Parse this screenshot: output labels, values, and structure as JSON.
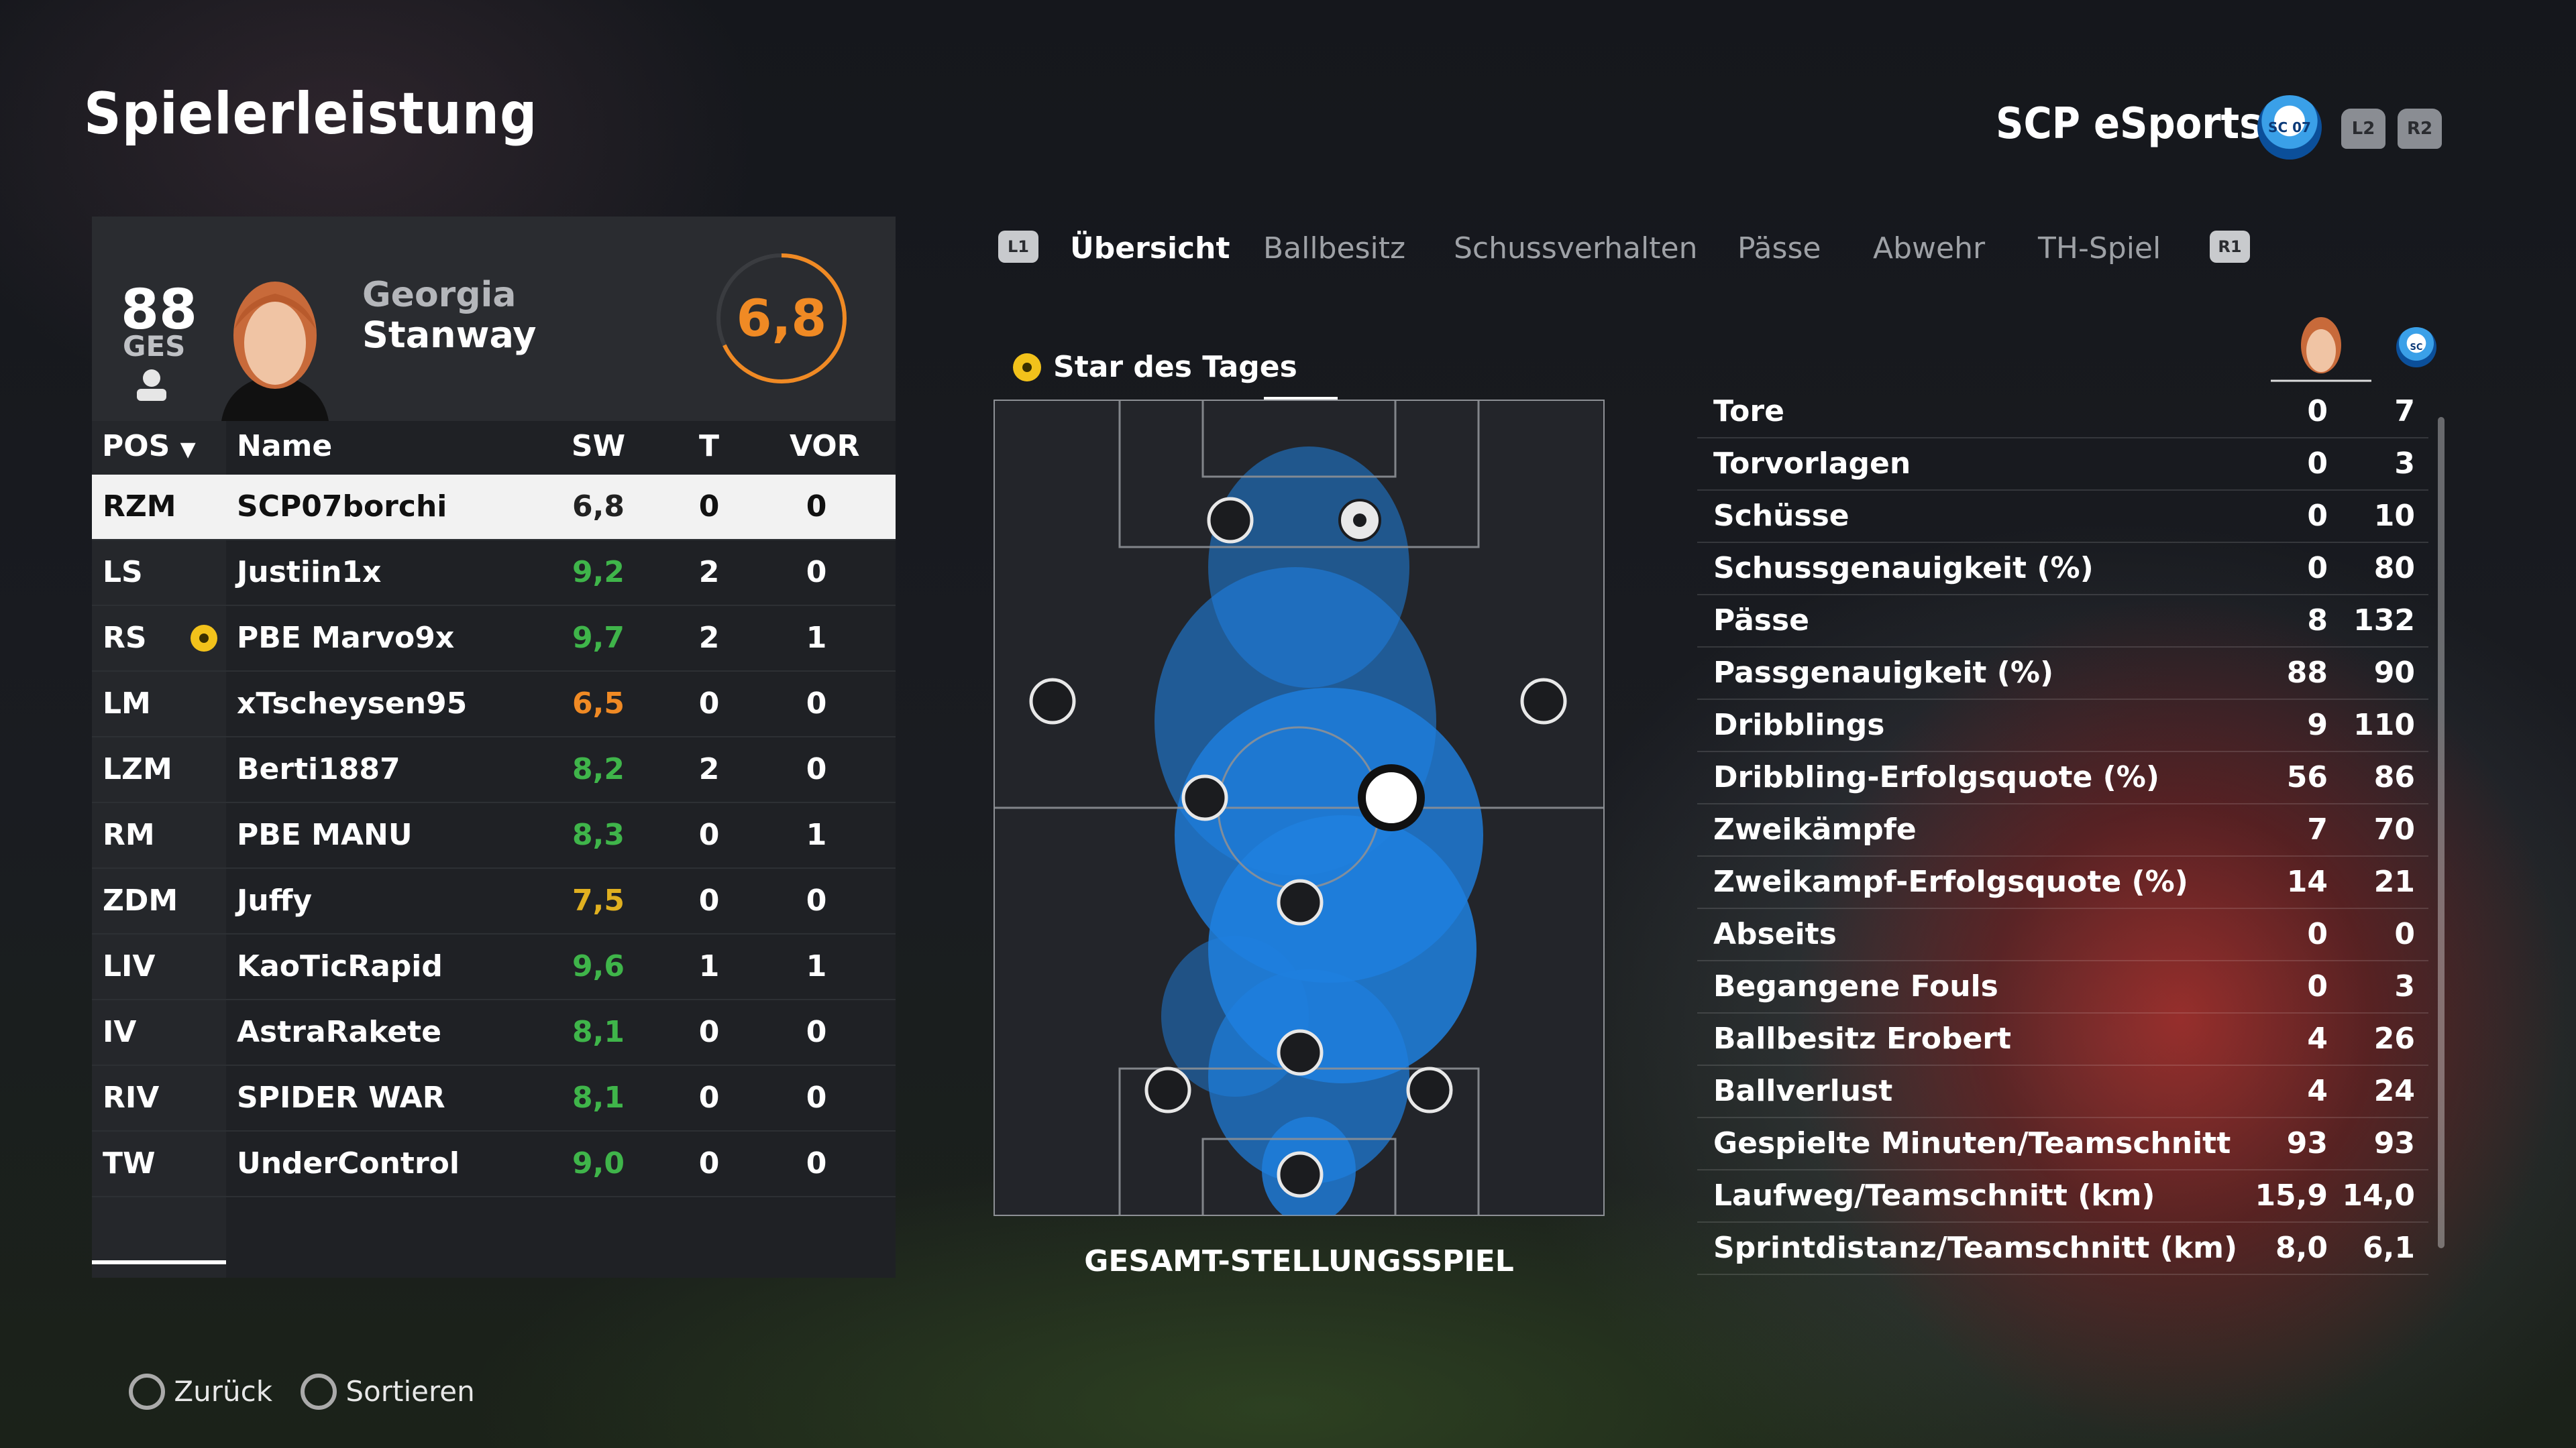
{
  "header": {
    "title": "Spielerleistung",
    "team": "SCP eSports",
    "badge_text": "SC 07",
    "triggers": [
      "L2",
      "R2"
    ]
  },
  "player": {
    "ges_value": "88",
    "ges_label": "GES",
    "first_name": "Georgia",
    "last_name": "Stanway",
    "rating": "6,8"
  },
  "table": {
    "headers": {
      "pos": "POS",
      "name": "Name",
      "sw": "SW",
      "t": "T",
      "vor": "VOR"
    },
    "rows": [
      {
        "pos": "RZM",
        "name": "SCP07borchi",
        "sw": "6,8",
        "t": "0",
        "vor": "0",
        "color": "#222222"
      },
      {
        "pos": "LS",
        "name": "Justiin1x",
        "sw": "9,2",
        "t": "2",
        "vor": "0",
        "color": "#3fb54a"
      },
      {
        "pos": "RS",
        "name": "PBE Marvo9x",
        "sw": "9,7",
        "t": "2",
        "vor": "1",
        "color": "#3fb54a",
        "star": true
      },
      {
        "pos": "LM",
        "name": "xTscheysen95",
        "sw": "6,5",
        "t": "0",
        "vor": "0",
        "color": "#f08a24"
      },
      {
        "pos": "LZM",
        "name": "Berti1887",
        "sw": "8,2",
        "t": "2",
        "vor": "0",
        "color": "#3fb54a"
      },
      {
        "pos": "RM",
        "name": "PBE MANU",
        "sw": "8,3",
        "t": "0",
        "vor": "1",
        "color": "#3fb54a"
      },
      {
        "pos": "ZDM",
        "name": "Juffy",
        "sw": "7,5",
        "t": "0",
        "vor": "0",
        "color": "#e0b020"
      },
      {
        "pos": "LIV",
        "name": "KaoTicRapid",
        "sw": "9,6",
        "t": "1",
        "vor": "1",
        "color": "#3fb54a"
      },
      {
        "pos": "IV",
        "name": "AstraRakete",
        "sw": "8,1",
        "t": "0",
        "vor": "0",
        "color": "#3fb54a"
      },
      {
        "pos": "RIV",
        "name": "SPIDER WAR",
        "sw": "8,1",
        "t": "0",
        "vor": "0",
        "color": "#3fb54a"
      },
      {
        "pos": "TW",
        "name": "UnderControl",
        "sw": "9,0",
        "t": "0",
        "vor": "0",
        "color": "#3fb54a"
      }
    ]
  },
  "tabs": {
    "left_btn": "L1",
    "right_btn": "R1",
    "items": [
      "Übersicht",
      "Ballbesitz",
      "Schussverhalten",
      "Pässe",
      "Abwehr",
      "TH-Spiel"
    ]
  },
  "pitch": {
    "star_label": "Star des Tages",
    "caption": "GESAMT-STELLUNGSSPIEL"
  },
  "stats": [
    {
      "label": "Tore",
      "player": "0",
      "team": "7"
    },
    {
      "label": "Torvorlagen",
      "player": "0",
      "team": "3"
    },
    {
      "label": "Schüsse",
      "player": "0",
      "team": "10"
    },
    {
      "label": "Schussgenauigkeit (%)",
      "player": "0",
      "team": "80"
    },
    {
      "label": "Pässe",
      "player": "8",
      "team": "132"
    },
    {
      "label": "Passgenauigkeit (%)",
      "player": "88",
      "team": "90"
    },
    {
      "label": "Dribblings",
      "player": "9",
      "team": "110"
    },
    {
      "label": "Dribbling-Erfolgsquote (%)",
      "player": "56",
      "team": "86"
    },
    {
      "label": "Zweikämpfe",
      "player": "7",
      "team": "70"
    },
    {
      "label": "Zweikampf-Erfolgsquote (%)",
      "player": "14",
      "team": "21"
    },
    {
      "label": "Abseits",
      "player": "0",
      "team": "0"
    },
    {
      "label": "Begangene Fouls",
      "player": "0",
      "team": "3"
    },
    {
      "label": "Ballbesitz Erobert",
      "player": "4",
      "team": "26"
    },
    {
      "label": "Ballverlust",
      "player": "4",
      "team": "24"
    },
    {
      "label": "Gespielte Minuten/Teamschnitt",
      "player": "93",
      "team": "93"
    },
    {
      "label": "Laufweg/Teamschnitt (km)",
      "player": "15,9",
      "team": "14,0"
    },
    {
      "label": "Sprintdistanz/Teamschnitt (km)",
      "player": "8,0",
      "team": "6,1"
    }
  ],
  "footer": {
    "back": "Zurück",
    "sort": "Sortieren"
  },
  "colors": {
    "accent_orange": "#f08a24",
    "heat_blue": "#1e90ff",
    "good_green": "#3fb54a"
  }
}
